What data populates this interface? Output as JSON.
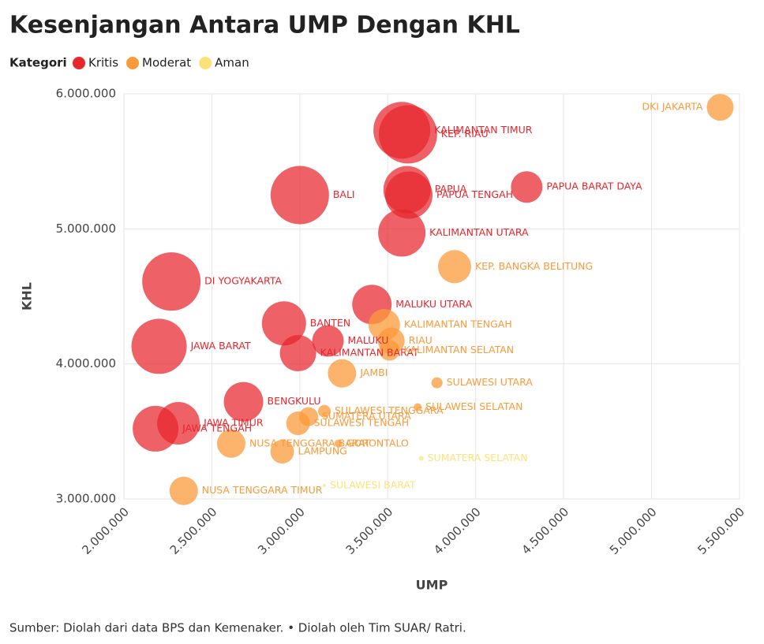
{
  "chart_data": {
    "type": "bubble",
    "title": "Kesenjangan Antara UMP Dengan KHL",
    "legend_title": "Kategori",
    "x_label": "UMP",
    "y_label": "KHL",
    "source": "Sumber: Diolah dari data BPS dan Kemenaker. • Diolah oleh Tim SUAR/ Ratri.",
    "xlim": [
      2000000,
      5500000
    ],
    "ylim": [
      3000000,
      6000000
    ],
    "xticks": [
      {
        "value": 2000000,
        "label": "2.000.000"
      },
      {
        "value": 2500000,
        "label": "2.500.000"
      },
      {
        "value": 3000000,
        "label": "3.000.000"
      },
      {
        "value": 3500000,
        "label": "3.500.000"
      },
      {
        "value": 4000000,
        "label": "4.000.000"
      },
      {
        "value": 4500000,
        "label": "4.500.000"
      },
      {
        "value": 5000000,
        "label": "5.000.000"
      },
      {
        "value": 5500000,
        "label": "5.500.000"
      }
    ],
    "yticks": [
      {
        "value": 3000000,
        "label": "3.000.000"
      },
      {
        "value": 4000000,
        "label": "4.000.000"
      },
      {
        "value": 5000000,
        "label": "5.000.000"
      },
      {
        "value": 6000000,
        "label": "6.000.000"
      }
    ],
    "grid": true,
    "series": [
      {
        "name": "Kritis",
        "color": "#e8262c",
        "labels": [
          "KEP. RIAU",
          "KALIMANTAN TIMUR",
          "BALI",
          "PAPUA",
          "PAPUA TENGAH",
          "PAPUA BARAT DAYA",
          "KALIMANTAN UTARA",
          "DI YOGYAKARTA",
          "JAWA BARAT",
          "MALUKU UTARA",
          "BANTEN",
          "MALUKU",
          "KALIMANTAN BARAT",
          "BENGKULU",
          "JAWA TIMUR",
          "JAWA TENGAH"
        ],
        "x": [
          3615000,
          3580000,
          3000000,
          3610000,
          3620000,
          4290000,
          3580000,
          2270000,
          2200000,
          3410000,
          2910000,
          3160000,
          2990000,
          2680000,
          2310000,
          2180000
        ],
        "y": [
          5700000,
          5730000,
          5250000,
          5290000,
          5250000,
          5310000,
          4970000,
          4610000,
          4130000,
          4440000,
          4300000,
          4170000,
          4080000,
          3720000,
          3560000,
          3520000
        ],
        "sizes": [
          37,
          36,
          37,
          30,
          30,
          20,
          30,
          37,
          35,
          25,
          28,
          20,
          23,
          25,
          27,
          29
        ]
      },
      {
        "name": "Moderat",
        "color": "#fb9a3a",
        "labels": [
          "DKI JAKARTA",
          "KEP. BANGKA BELITUNG",
          "KALIMANTAN TENGAH",
          "RIAU",
          "KALIMANTAN SELATAN",
          "JAMBI",
          "SULAWESI UTARA",
          "SULAWESI SELATAN",
          "SULAWESI TENGGARA",
          "SUMATERA UTARA",
          "SULAWESI TENGAH",
          "NUSA TENGGARA BARAT",
          "LAMPUNG",
          "GORONTALO",
          "NUSA TENGGARA TIMUR"
        ],
        "x": [
          5390000,
          3880000,
          3480000,
          3520000,
          3510000,
          3240000,
          3780000,
          3670000,
          3140000,
          3050000,
          2990000,
          2610000,
          2900000,
          3220000,
          2340000
        ],
        "y": [
          5900000,
          4720000,
          4290000,
          4170000,
          4100000,
          3930000,
          3860000,
          3680000,
          3650000,
          3610000,
          3560000,
          3410000,
          3350000,
          3410000,
          3060000
        ],
        "sizes": [
          17,
          21,
          20,
          17,
          13,
          18,
          7,
          5,
          8,
          12,
          15,
          18,
          15,
          5,
          18
        ]
      },
      {
        "name": "Aman",
        "color": "#fde27a",
        "labels": [
          "SUMATERA SELATAN",
          "SULAWESI BARAT"
        ],
        "x": [
          3690000,
          3140000
        ],
        "y": [
          3300000,
          3100000
        ],
        "sizes": [
          3,
          2
        ]
      }
    ]
  }
}
